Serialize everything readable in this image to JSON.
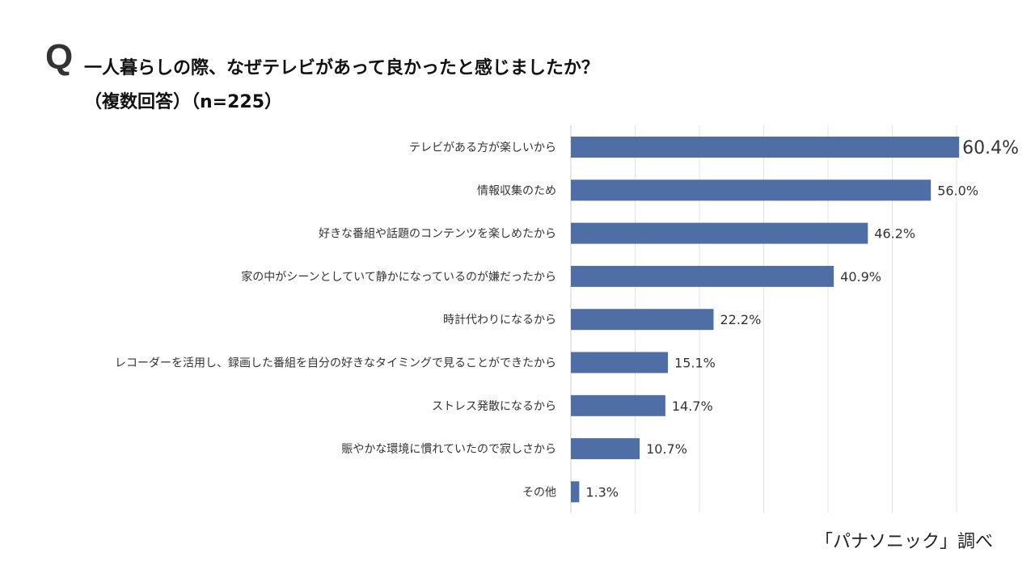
{
  "title": {
    "q_mark": "Q",
    "question": "一人暮らしの際、なぜテレビがあって良かったと感じましたか？",
    "note": "（複数回答）（n=225）"
  },
  "source": "「パナソニック」調べ",
  "chart_data": {
    "type": "bar",
    "orientation": "horizontal",
    "categories": [
      "テレビがある方が楽しいから",
      "情報収集のため",
      "好きな番組や話題のコンテンツを楽しめたから",
      "家の中がシーンとしていて静かになっているのが嫌だったから",
      "時計代わりになるから",
      "レコーダーを活用し、録画した番組を自分の好きなタイミングで見ることができたから",
      "ストレス発散になるから",
      "賑やかな環境に慣れていたので寂しさから",
      "その他"
    ],
    "values": [
      60.4,
      56.0,
      46.2,
      40.9,
      22.2,
      15.1,
      14.7,
      10.7,
      1.3
    ],
    "data_labels": [
      "60.4%",
      "56.0%",
      "46.2%",
      "40.9%",
      "22.2%",
      "15.1%",
      "14.7%",
      "10.7%",
      "1.3%"
    ],
    "xlim": [
      0,
      60
    ],
    "grid": true,
    "bar_color": "#4f6ea6"
  }
}
